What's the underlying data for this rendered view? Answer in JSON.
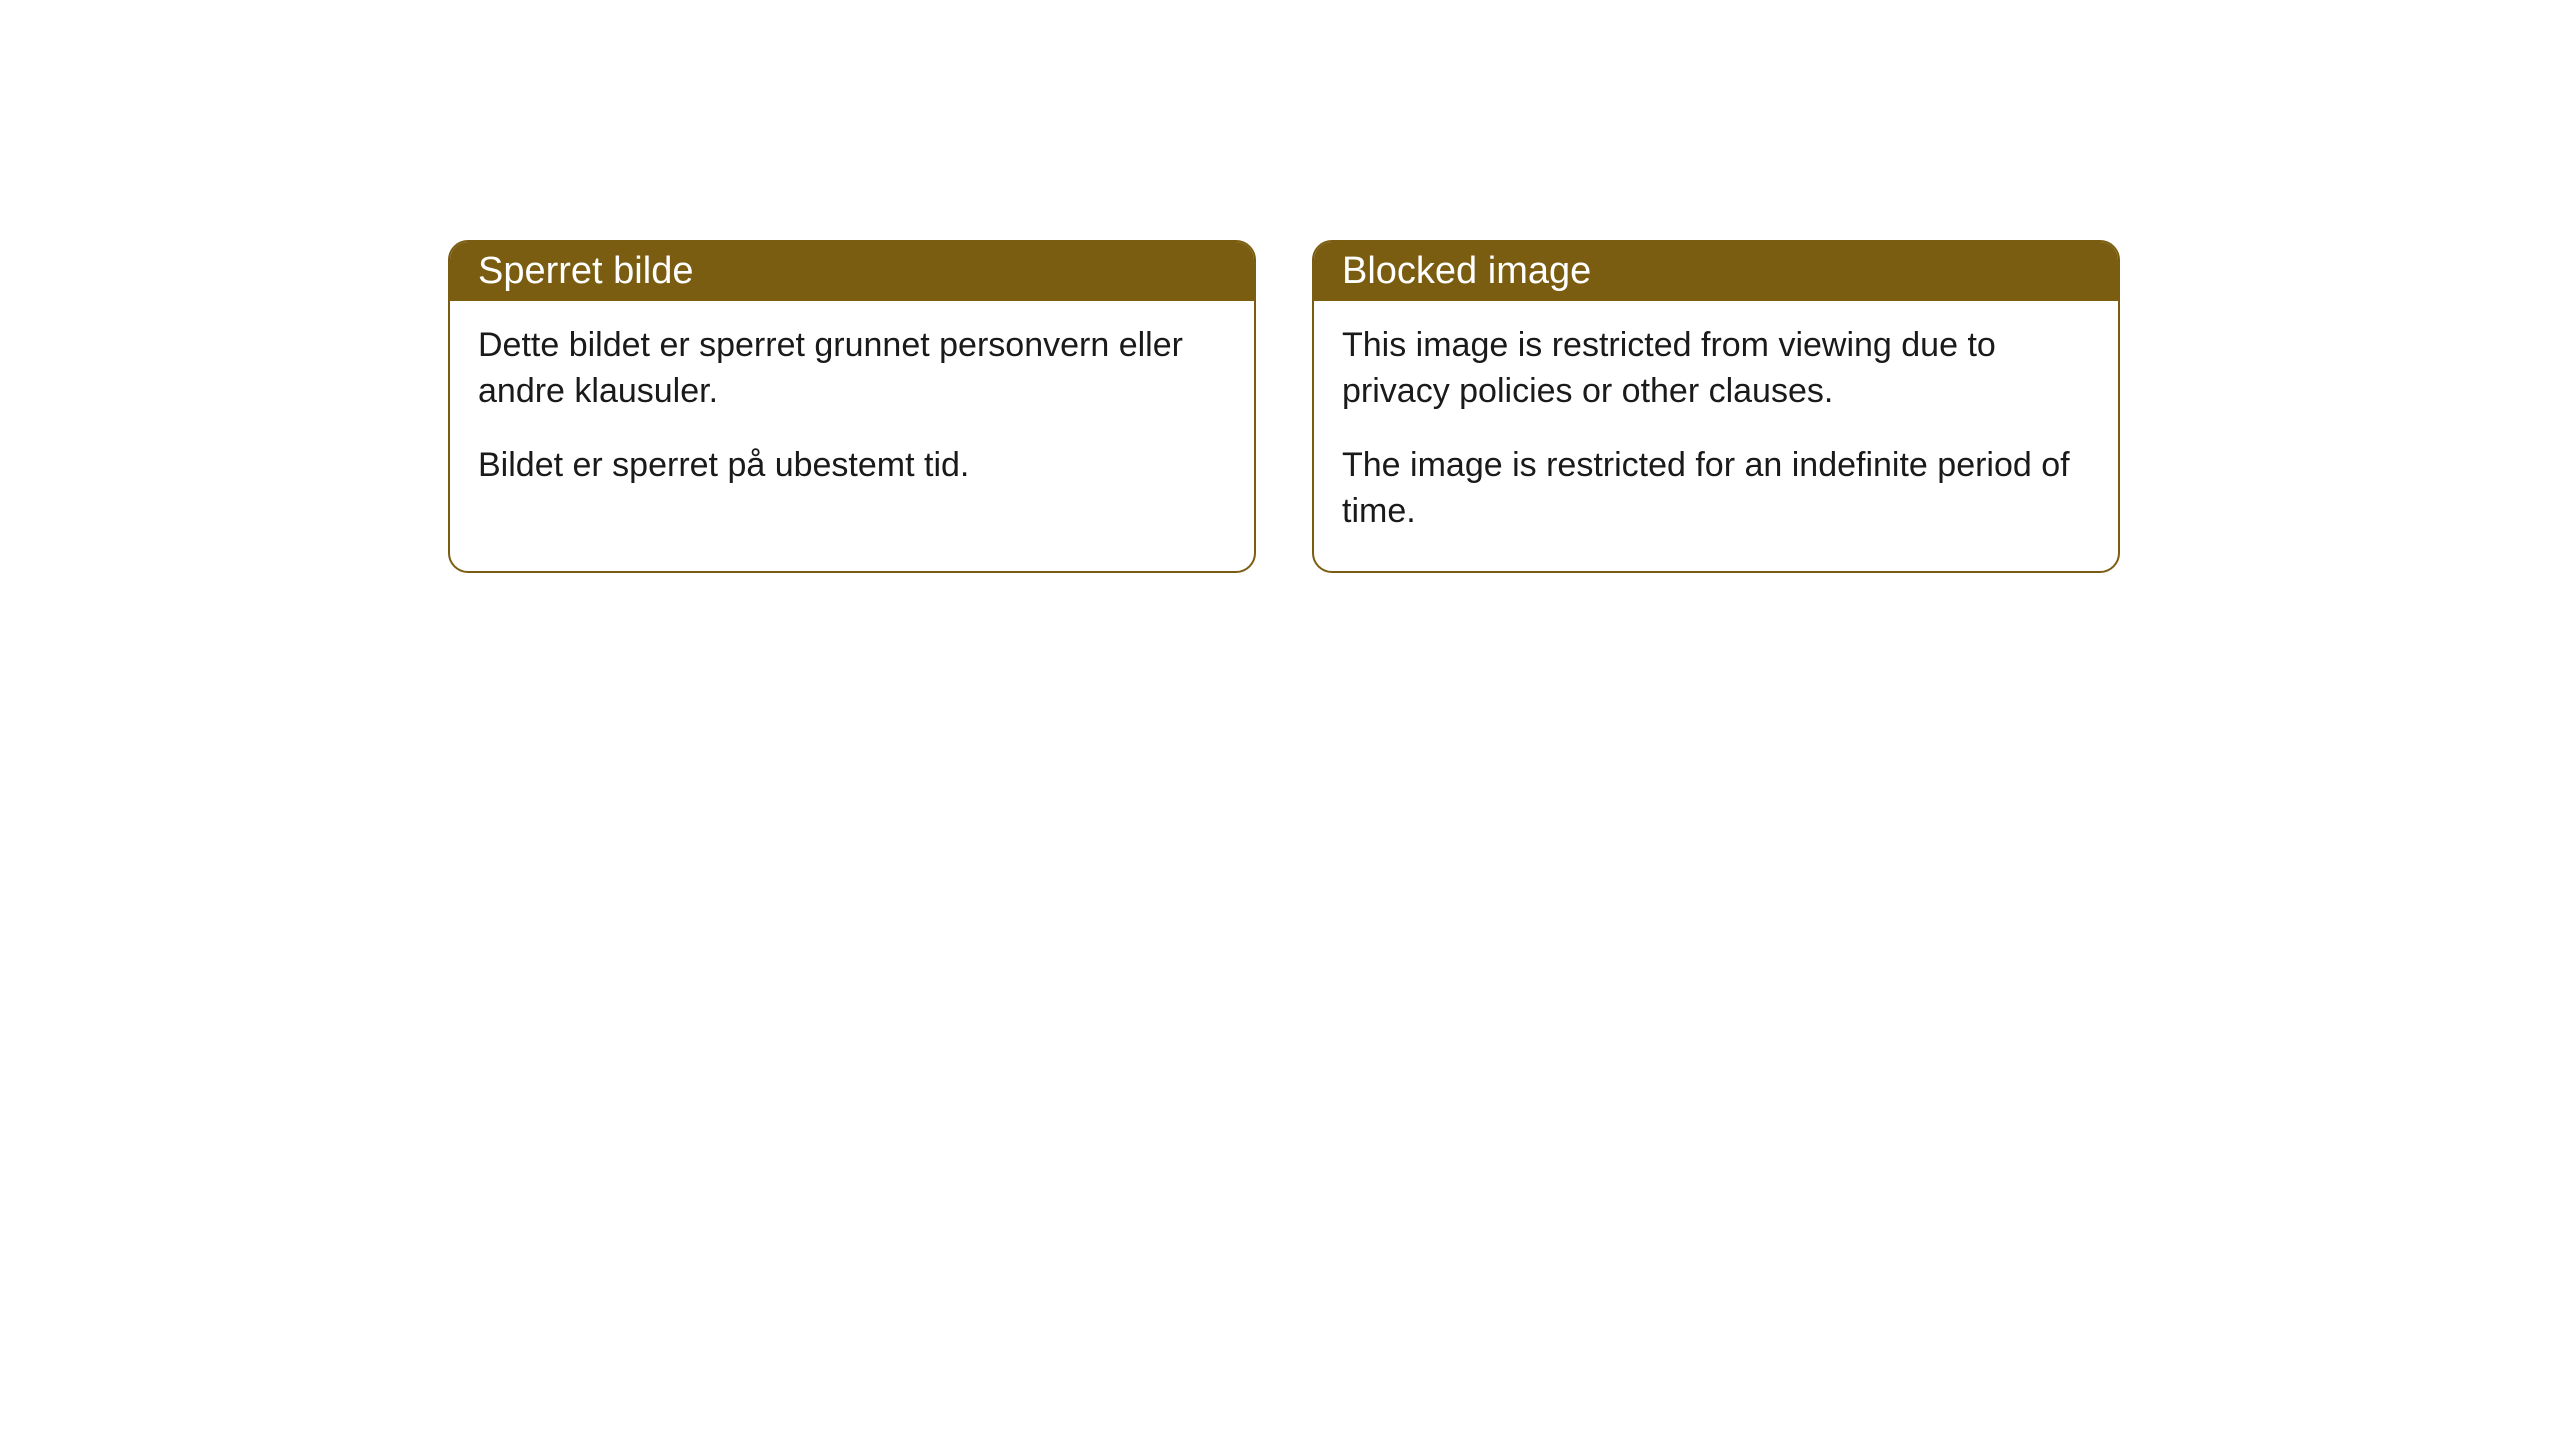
{
  "cards": [
    {
      "title": "Sperret bilde",
      "paragraph1": "Dette bildet er sperret grunnet personvern eller andre klausuler.",
      "paragraph2": "Bildet er sperret på ubestemt tid."
    },
    {
      "title": "Blocked image",
      "paragraph1": "This image is restricted from viewing due to privacy policies or other clauses.",
      "paragraph2": "The image is restricted for an indefinite period of time."
    }
  ],
  "styling": {
    "header_background": "#7a5d10",
    "header_text_color": "#ffffff",
    "border_color": "#7a5d10",
    "body_text_color": "#1a1a1a",
    "card_background": "#ffffff",
    "page_background": "#ffffff",
    "border_radius": 20,
    "title_fontsize": 38,
    "body_fontsize": 34
  }
}
